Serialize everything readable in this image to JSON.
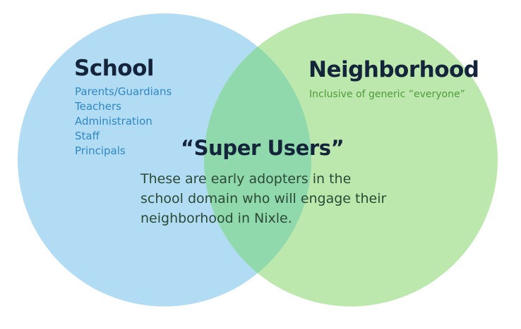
{
  "colors": {
    "school_circle": "#b1dcf3",
    "neighborhood_circle": "#bce8ad",
    "overlap": "#8fd9ac",
    "title_text": "#14243a",
    "school_items_text": "#2f88c4",
    "neighborhood_sub_text": "#4f9a3b",
    "super_users_desc_text": "#2b4a36"
  },
  "school": {
    "title": "School",
    "items": [
      "Parents/Guardians",
      "Teachers",
      "Administration",
      "Staff",
      "Principals"
    ]
  },
  "neighborhood": {
    "title": "Neighborhood",
    "subtitle": "Inclusive of generic “everyone”"
  },
  "super_users": {
    "title": "“Super Users”",
    "description_lines": [
      "These are early adopters in the",
      "school domain who will engage their",
      "neighborhood in Nixle."
    ]
  }
}
